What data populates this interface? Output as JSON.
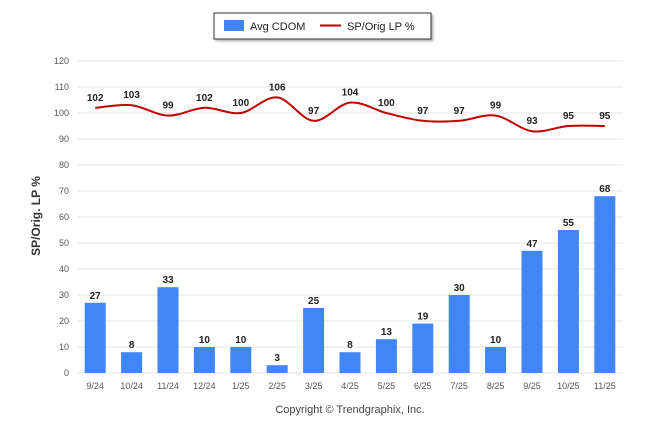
{
  "chart_data": {
    "type": "bar",
    "categories": [
      "9/24",
      "10/24",
      "11/24",
      "12/24",
      "1/25",
      "2/25",
      "3/25",
      "4/25",
      "5/25",
      "6/25",
      "7/25",
      "8/25",
      "9/25",
      "10/25",
      "11/25"
    ],
    "series": [
      {
        "name": "Avg CDOM",
        "type": "bar",
        "color": "#4285f4",
        "values": [
          27,
          8,
          33,
          10,
          10,
          3,
          25,
          8,
          13,
          19,
          30,
          10,
          47,
          55,
          68
        ]
      },
      {
        "name": "SP/Orig LP %",
        "type": "line",
        "color": "#c00000",
        "values": [
          102,
          103,
          99,
          102,
          100,
          106,
          97,
          104,
          100,
          97,
          97,
          99,
          93,
          95,
          95
        ]
      }
    ],
    "ylabel": "SP/Orig. LP %",
    "ylim": [
      0,
      120
    ],
    "yticks": [
      0,
      10,
      20,
      30,
      40,
      50,
      60,
      70,
      80,
      90,
      100,
      110,
      120
    ],
    "grid": true,
    "legend_position": "top-center",
    "footer": "Copyright © Trendgraphix, Inc."
  }
}
